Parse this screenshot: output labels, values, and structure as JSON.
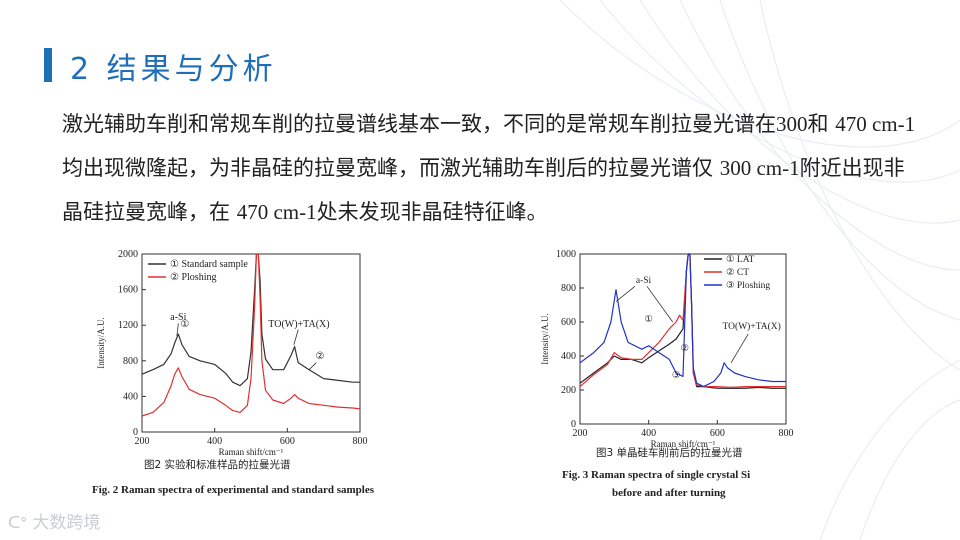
{
  "slide": {
    "title": "2  结果与分析",
    "paragraph": [
      {
        "t": "激光辅助车削和常规车削的拉曼谱线基本一致，不同的是常规车削拉曼光谱在"
      },
      {
        "n": "300"
      },
      {
        "t": "和 "
      },
      {
        "n": "470 cm-1"
      },
      {
        "t": "均出现微隆起，为非晶硅的拉曼宽峰，而激光辅助车削后的拉曼光谱仅 "
      },
      {
        "n": "300 cm-1"
      },
      {
        "t": "附近出现非晶硅拉曼宽峰，在 "
      },
      {
        "n": "470 cm-1"
      },
      {
        "t": "处未发现非晶硅特征峰。"
      }
    ],
    "watermark": "大数跨境",
    "accent_color": "#1f6fb8"
  },
  "chart_data": [
    {
      "type": "line",
      "xlabel": "Raman shift/cm⁻¹",
      "ylabel": "Intensity/A.U.",
      "xlim": [
        200,
        800
      ],
      "ylim": [
        0,
        2000
      ],
      "xticks": [
        200,
        400,
        600,
        800
      ],
      "yticks": [
        0,
        400,
        800,
        1200,
        1600,
        2000
      ],
      "legend_position": "top-left",
      "annotations": [
        {
          "text": "a-Si",
          "x": 300,
          "y": 1260
        },
        {
          "text": "①",
          "x": 318,
          "y": 1180
        },
        {
          "text": "TO(W)+TA(X)",
          "x": 632,
          "y": 1180
        },
        {
          "text": "②",
          "x": 690,
          "y": 820
        }
      ],
      "series": [
        {
          "name": "① Standard sample",
          "color": "#333333",
          "x": [
            200,
            230,
            260,
            280,
            290,
            300,
            310,
            330,
            360,
            400,
            430,
            450,
            470,
            490,
            500,
            510,
            515,
            520,
            525,
            530,
            540,
            560,
            590,
            610,
            620,
            630,
            660,
            700,
            740,
            780,
            800
          ],
          "y": [
            650,
            700,
            760,
            880,
            1000,
            1100,
            980,
            850,
            800,
            760,
            660,
            560,
            520,
            600,
            900,
            1600,
            2000,
            2000,
            1700,
            1100,
            820,
            700,
            700,
            860,
            960,
            780,
            700,
            600,
            580,
            560,
            560
          ]
        },
        {
          "name": "② Ploshing",
          "color": "#e03030",
          "x": [
            200,
            230,
            260,
            280,
            290,
            300,
            310,
            330,
            360,
            400,
            430,
            450,
            470,
            490,
            500,
            510,
            515,
            520,
            525,
            530,
            540,
            560,
            590,
            610,
            620,
            630,
            660,
            700,
            740,
            780,
            800
          ],
          "y": [
            180,
            220,
            330,
            520,
            650,
            720,
            620,
            480,
            420,
            380,
            300,
            240,
            220,
            300,
            600,
            1400,
            2000,
            2000,
            1500,
            800,
            470,
            360,
            320,
            380,
            420,
            380,
            320,
            300,
            280,
            270,
            260
          ]
        }
      ],
      "caption_zh": "图2   实验和标准样品的拉曼光谱",
      "caption_en": "Fig. 2    Raman spectra of experimental and standard samples"
    },
    {
      "type": "line",
      "xlabel": "Raman shift/cm⁻¹",
      "ylabel": "Intensity/A.U.",
      "xlim": [
        200,
        800
      ],
      "ylim": [
        0,
        1000
      ],
      "xticks": [
        200,
        400,
        600,
        800
      ],
      "yticks": [
        0,
        200,
        400,
        600,
        800,
        1000
      ],
      "legend_position": "top-right",
      "annotations": [
        {
          "text": "a-Si",
          "x": 385,
          "y": 830
        },
        {
          "text": "①",
          "x": 400,
          "y": 600
        },
        {
          "text": "②",
          "x": 505,
          "y": 430
        },
        {
          "text": "③",
          "x": 480,
          "y": 270
        },
        {
          "text": "TO(W)+TA(X)",
          "x": 700,
          "y": 560
        }
      ],
      "series": [
        {
          "name": "① LAT",
          "color": "#222222",
          "x": [
            200,
            240,
            280,
            300,
            320,
            350,
            380,
            400,
            430,
            460,
            480,
            500,
            510,
            515,
            520,
            525,
            530,
            540,
            560,
            600,
            640,
            680,
            720,
            760,
            800
          ],
          "y": [
            240,
            300,
            360,
            400,
            380,
            380,
            360,
            390,
            430,
            470,
            500,
            560,
            900,
            1000,
            1000,
            700,
            300,
            220,
            220,
            210,
            210,
            210,
            215,
            210,
            210
          ]
        },
        {
          "name": "② CT",
          "color": "#e03030",
          "x": [
            200,
            240,
            280,
            300,
            320,
            350,
            380,
            400,
            430,
            460,
            480,
            490,
            500,
            510,
            515,
            520,
            525,
            530,
            540,
            560,
            600,
            640,
            680,
            720,
            760,
            800
          ],
          "y": [
            220,
            290,
            350,
            420,
            390,
            380,
            380,
            420,
            480,
            560,
            600,
            640,
            610,
            900,
            1000,
            1000,
            700,
            300,
            230,
            220,
            220,
            215,
            220,
            220,
            220,
            220
          ]
        },
        {
          "name": "③ Ploshing",
          "color": "#2233cc",
          "x": [
            200,
            240,
            270,
            290,
            305,
            320,
            340,
            360,
            380,
            400,
            430,
            460,
            480,
            500,
            510,
            515,
            520,
            525,
            530,
            540,
            560,
            590,
            610,
            620,
            630,
            650,
            680,
            720,
            760,
            800
          ],
          "y": [
            360,
            420,
            480,
            600,
            790,
            600,
            480,
            460,
            440,
            460,
            420,
            380,
            300,
            280,
            900,
            1000,
            1000,
            700,
            330,
            240,
            220,
            250,
            300,
            360,
            330,
            300,
            280,
            260,
            250,
            250
          ]
        }
      ],
      "caption_zh": "图3   单晶硅车削前后的拉曼光谱",
      "caption_en": "Fig. 3    Raman spectra of single crystal Si",
      "caption_en_2": "before and after turning"
    }
  ]
}
